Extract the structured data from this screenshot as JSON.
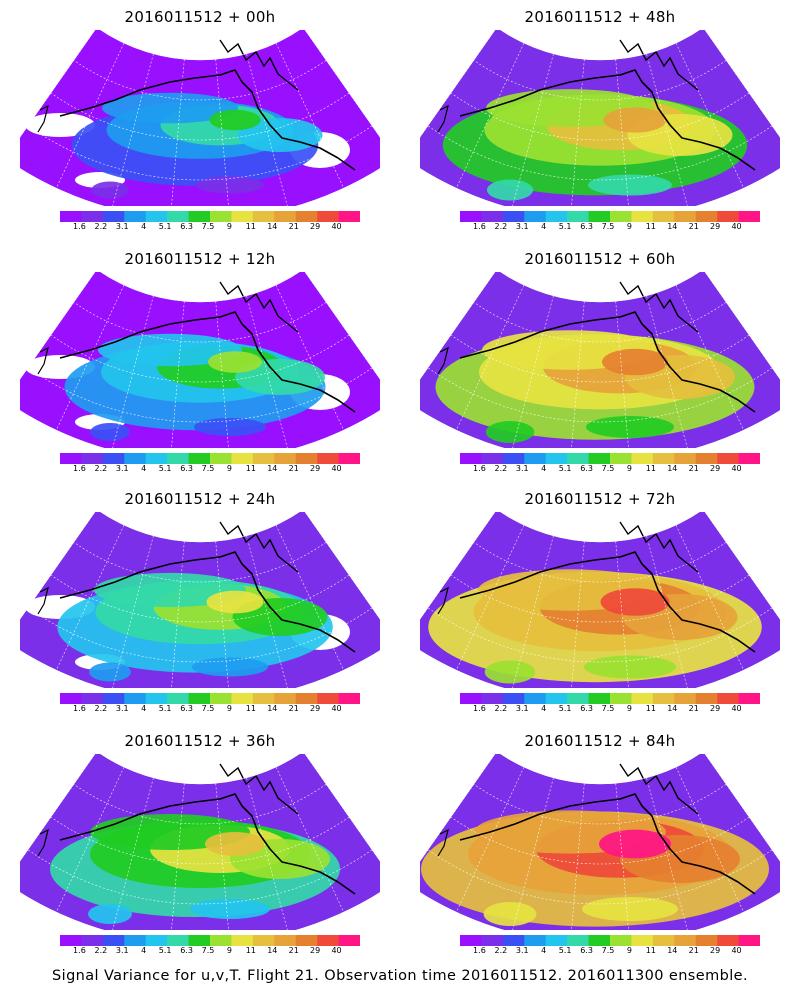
{
  "colors": [
    "#9910ff",
    "#7b2fe8",
    "#3a50f5",
    "#1e9cf0",
    "#23c4ee",
    "#33d9a8",
    "#22cc22",
    "#9be131",
    "#e6e341",
    "#e5bf3d",
    "#e6a33a",
    "#e58030",
    "#ef4a3a",
    "#ff1585"
  ],
  "scale_labels": [
    "1.6",
    "2.2",
    "3.1",
    "4",
    "5.1",
    "6.3",
    "7.5",
    "9",
    "11",
    "14",
    "21",
    "29",
    "40"
  ],
  "panels": [
    {
      "title": "2016011512 + 00h",
      "intensity": 0
    },
    {
      "title": "2016011512 + 48h",
      "intensity": 4
    },
    {
      "title": "2016011512 + 12h",
      "intensity": 1
    },
    {
      "title": "2016011512 + 60h",
      "intensity": 5
    },
    {
      "title": "2016011512 + 24h",
      "intensity": 2
    },
    {
      "title": "2016011512 + 72h",
      "intensity": 6
    },
    {
      "title": "2016011512 + 36h",
      "intensity": 3
    },
    {
      "title": "2016011512 + 84h",
      "intensity": 7
    }
  ],
  "caption": "Signal Variance for u,v,T. Flight 21. Observation time 2016011512. 2016011300 ensemble."
}
